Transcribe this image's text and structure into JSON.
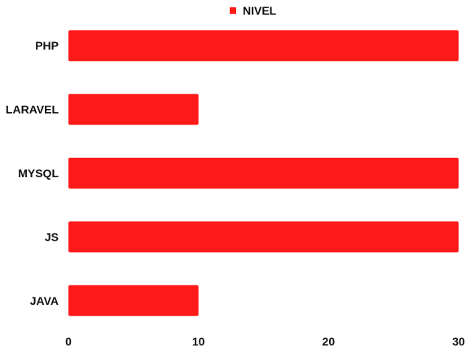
{
  "chart_data": {
    "type": "bar",
    "orientation": "horizontal",
    "categories": [
      "PHP",
      "LARAVEL",
      "MYSQL",
      "JS",
      "JAVA"
    ],
    "series": [
      {
        "name": "NIVEL",
        "values": [
          30,
          10,
          30,
          30,
          10
        ],
        "color": "#ff1a1a"
      }
    ],
    "xticks": [
      "0",
      "10",
      "20",
      "30"
    ],
    "xlim": [
      0,
      30
    ],
    "grid": false,
    "legend_position": "top-center"
  }
}
